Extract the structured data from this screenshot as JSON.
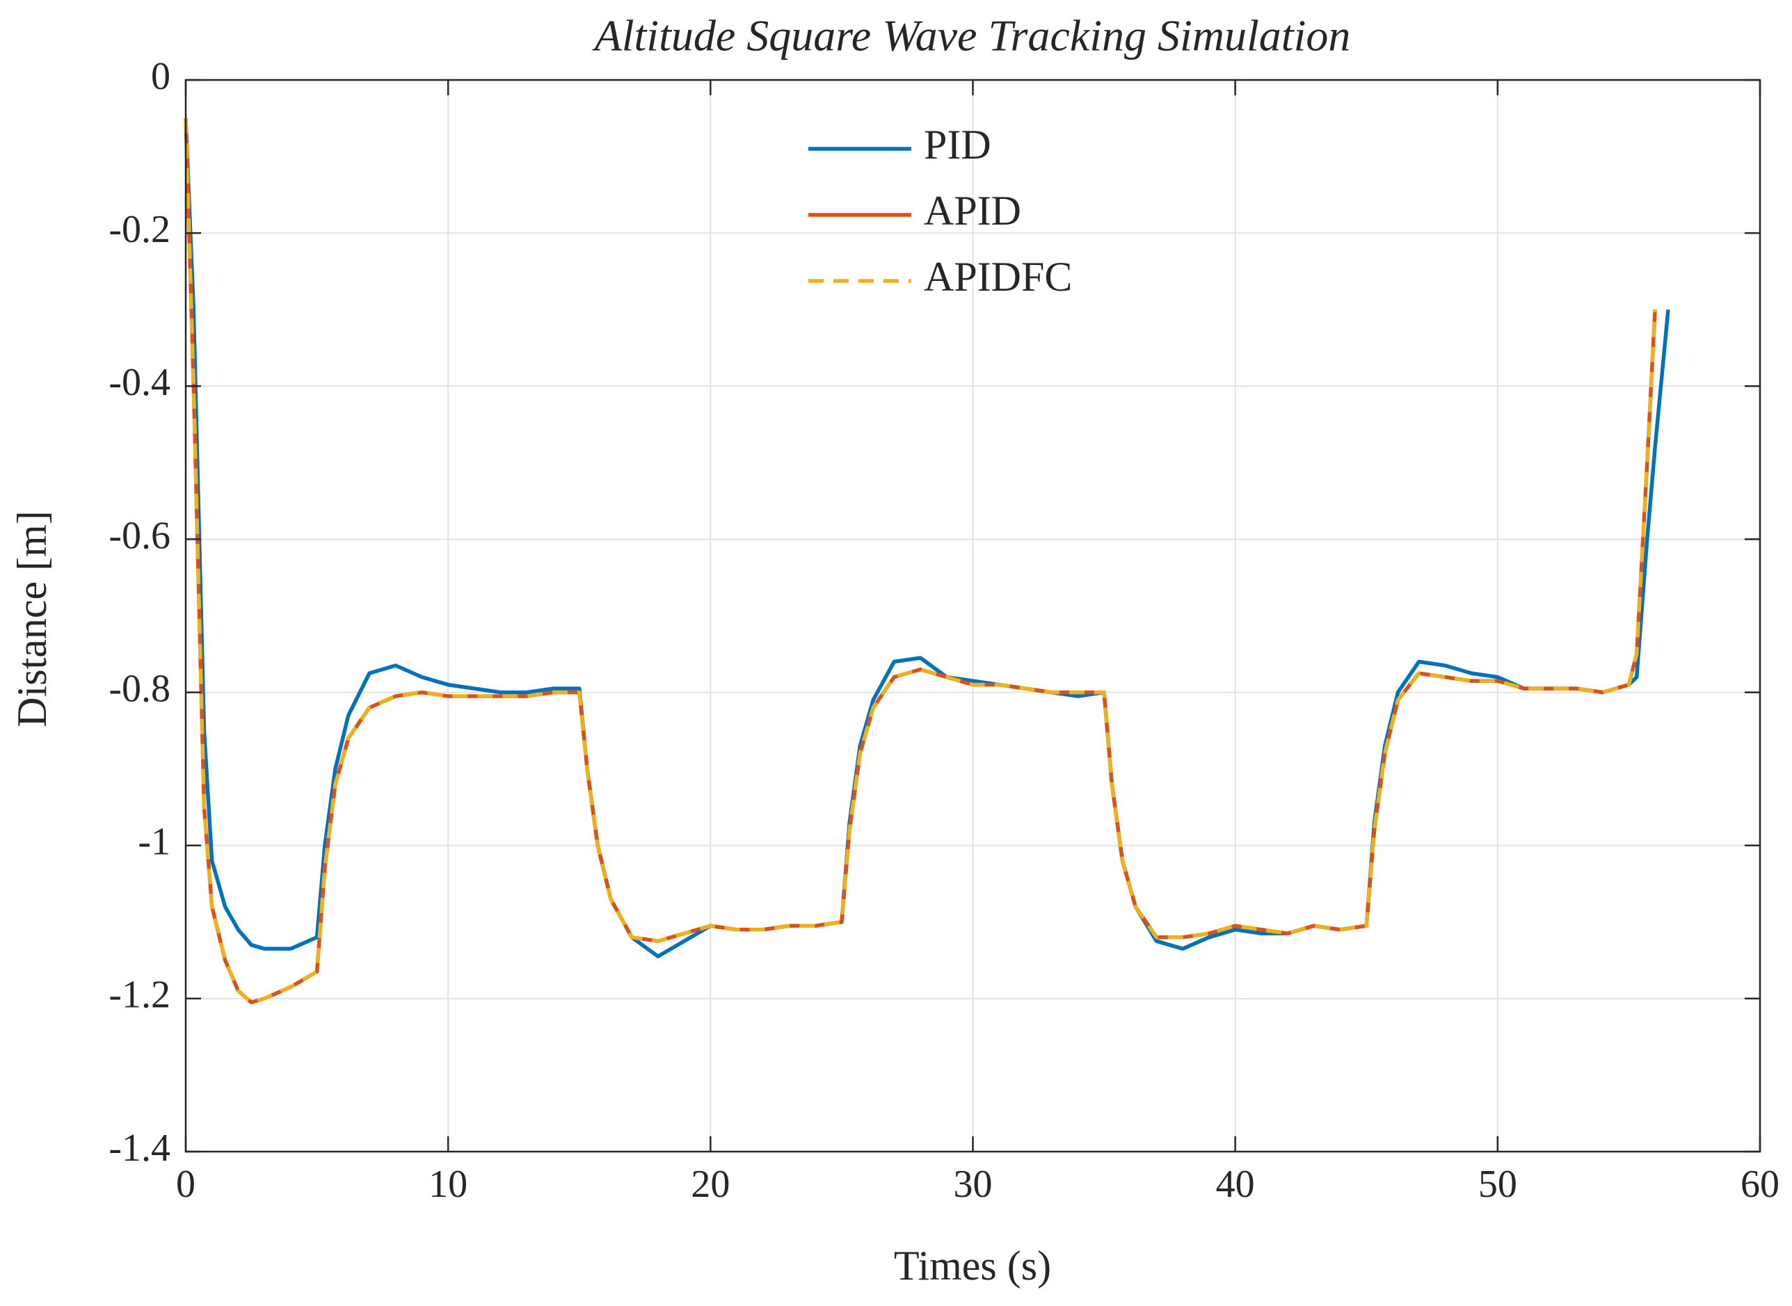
{
  "chart_data": {
    "type": "line",
    "title": "Altitude Square Wave Tracking Simulation",
    "xlabel": "Times (s)",
    "ylabel": "Distance [m]",
    "xlim": [
      0,
      60
    ],
    "xticks": [
      0,
      10,
      20,
      30,
      40,
      50,
      60
    ],
    "ylim": [
      -1.4,
      0
    ],
    "yticks": [
      0,
      -0.2,
      -0.4,
      -0.6,
      -0.8,
      -1,
      -1.2,
      -1.4
    ],
    "grid": true,
    "legend": "top",
    "x": [
      0,
      0.3,
      0.7,
      1,
      1.5,
      2,
      2.5,
      3,
      4,
      5,
      5.3,
      5.7,
      6.2,
      7,
      8,
      9,
      10,
      11,
      12,
      13,
      14,
      15,
      15.3,
      15.7,
      16.2,
      17,
      18,
      19,
      20,
      21,
      22,
      23,
      24,
      25,
      25.3,
      25.7,
      26.2,
      27,
      28,
      29,
      30,
      31,
      32,
      33,
      34,
      35,
      35.3,
      35.7,
      36.2,
      37,
      38,
      39,
      40,
      41,
      42,
      43,
      44,
      45,
      45.3,
      45.7,
      46.2,
      47,
      48,
      49,
      50,
      51,
      52,
      53,
      54,
      55,
      55.3,
      55.7,
      56,
      56.5
    ],
    "series": [
      {
        "name": "PID",
        "color": "#0072BD",
        "dash": false,
        "values": [
          -0.05,
          -0.3,
          -0.85,
          -1.02,
          -1.08,
          -1.11,
          -1.13,
          -1.135,
          -1.135,
          -1.12,
          -1.0,
          -0.9,
          -0.83,
          -0.775,
          -0.765,
          -0.78,
          -0.79,
          -0.795,
          -0.8,
          -0.8,
          -0.795,
          -0.795,
          -0.9,
          -1.0,
          -1.07,
          -1.12,
          -1.145,
          -1.125,
          -1.105,
          -1.11,
          -1.11,
          -1.105,
          -1.105,
          -1.1,
          -0.97,
          -0.87,
          -0.81,
          -0.76,
          -0.755,
          -0.78,
          -0.785,
          -0.79,
          -0.795,
          -0.8,
          -0.805,
          -0.8,
          -0.92,
          -1.02,
          -1.08,
          -1.125,
          -1.135,
          -1.12,
          -1.11,
          -1.115,
          -1.115,
          -1.105,
          -1.11,
          -1.105,
          -0.97,
          -0.87,
          -0.8,
          -0.76,
          -0.765,
          -0.775,
          -0.78,
          -0.795,
          -0.795,
          -0.795,
          -0.8,
          -0.79,
          -0.78,
          -0.6,
          -0.48,
          -0.3
        ]
      },
      {
        "name": "APID",
        "color": "#D95319",
        "dash": false,
        "values": [
          -0.05,
          -0.4,
          -0.95,
          -1.08,
          -1.15,
          -1.19,
          -1.205,
          -1.2,
          -1.185,
          -1.165,
          -1.03,
          -0.92,
          -0.86,
          -0.82,
          -0.805,
          -0.8,
          -0.805,
          -0.805,
          -0.805,
          -0.805,
          -0.8,
          -0.8,
          -0.9,
          -1.0,
          -1.07,
          -1.12,
          -1.125,
          -1.115,
          -1.105,
          -1.11,
          -1.11,
          -1.105,
          -1.105,
          -1.1,
          -0.98,
          -0.88,
          -0.82,
          -0.78,
          -0.77,
          -0.78,
          -0.79,
          -0.79,
          -0.795,
          -0.8,
          -0.8,
          -0.8,
          -0.92,
          -1.02,
          -1.08,
          -1.12,
          -1.12,
          -1.115,
          -1.105,
          -1.11,
          -1.115,
          -1.105,
          -1.11,
          -1.105,
          -0.98,
          -0.88,
          -0.81,
          -0.775,
          -0.78,
          -0.785,
          -0.785,
          -0.795,
          -0.795,
          -0.795,
          -0.8,
          -0.79,
          -0.75,
          -0.5,
          -0.3,
          null
        ]
      },
      {
        "name": "APIDFC",
        "color": "#EDB120",
        "dash": true,
        "values": [
          -0.05,
          -0.4,
          -0.95,
          -1.08,
          -1.15,
          -1.19,
          -1.205,
          -1.2,
          -1.185,
          -1.165,
          -1.03,
          -0.92,
          -0.86,
          -0.82,
          -0.805,
          -0.8,
          -0.805,
          -0.805,
          -0.805,
          -0.805,
          -0.8,
          -0.8,
          -0.9,
          -1.0,
          -1.07,
          -1.12,
          -1.125,
          -1.115,
          -1.105,
          -1.11,
          -1.11,
          -1.105,
          -1.105,
          -1.1,
          -0.98,
          -0.88,
          -0.82,
          -0.78,
          -0.77,
          -0.78,
          -0.79,
          -0.79,
          -0.795,
          -0.8,
          -0.8,
          -0.8,
          -0.92,
          -1.02,
          -1.08,
          -1.12,
          -1.12,
          -1.115,
          -1.105,
          -1.11,
          -1.115,
          -1.105,
          -1.11,
          -1.105,
          -0.98,
          -0.88,
          -0.81,
          -0.775,
          -0.78,
          -0.785,
          -0.785,
          -0.795,
          -0.795,
          -0.795,
          -0.8,
          -0.79,
          -0.75,
          -0.5,
          -0.3,
          null
        ]
      }
    ]
  }
}
